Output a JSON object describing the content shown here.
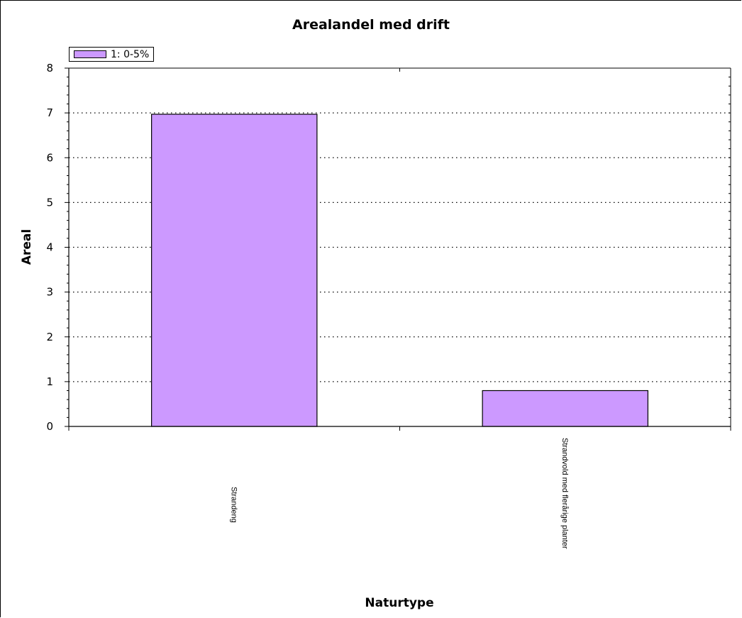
{
  "chart_data": {
    "type": "bar",
    "title": "Arealandel med drift",
    "xlabel": "Naturtype",
    "ylabel": "Areal",
    "categories": [
      "Strandeng",
      "Strandvold med flerårige planter"
    ],
    "series": [
      {
        "name": "1: 0-5%",
        "values": [
          6.97,
          0.8
        ],
        "color": "#cc99ff"
      }
    ],
    "ylim": [
      0,
      8
    ],
    "yticks": [
      0,
      1,
      2,
      3,
      4,
      5,
      6,
      7,
      8
    ],
    "grid": "dotted horizontal",
    "legend": "top-left"
  }
}
